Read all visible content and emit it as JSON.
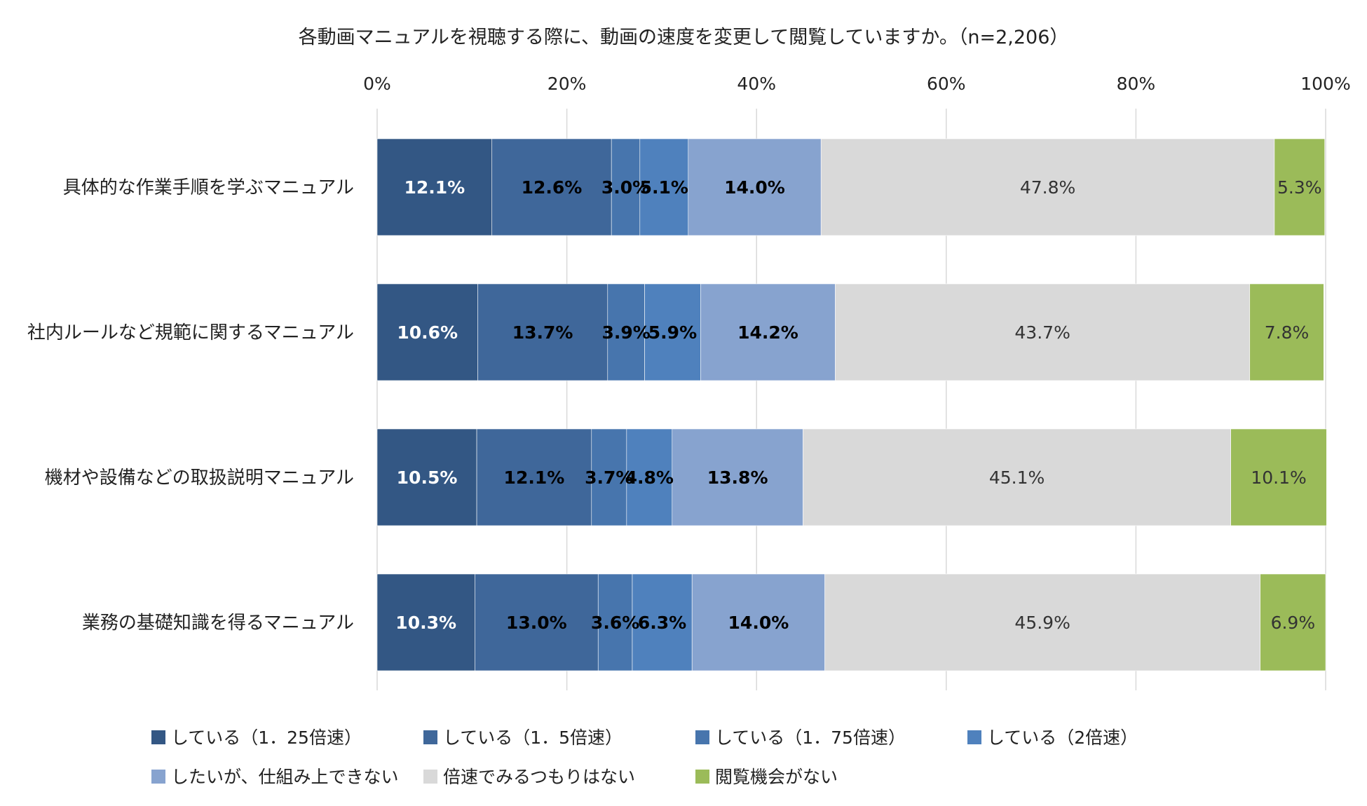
{
  "chart_data": {
    "type": "bar",
    "orientation": "horizontal",
    "stacked": "100%",
    "title": "各動画マニュアルを視聴する際に、動画の速度を変更して閲覧していますか。（n=2,206）",
    "xlim": [
      0,
      100
    ],
    "x_ticks": [
      "0%",
      "20%",
      "40%",
      "60%",
      "80%",
      "100%"
    ],
    "grid": true,
    "legend_position": "bottom",
    "categories": [
      "具体的な作業手順を学ぶマニュアル",
      "社内ルールなど規範に関するマニュアル",
      "機材や設備などの取扱説明マニュアル",
      "業務の基礎知識を得るマニュアル"
    ],
    "series": [
      {
        "name": "している（1．25倍速）",
        "color": "#335784",
        "label_color": "#ffffff",
        "values": [
          12.1,
          10.6,
          10.5,
          10.3
        ],
        "labels": [
          "12.1%",
          "10.6%",
          "10.5%",
          "10.3%"
        ]
      },
      {
        "name": "している（1．5倍速）",
        "color": "#3f679a",
        "label_color": "#000000",
        "values": [
          12.6,
          13.7,
          12.1,
          13.0
        ],
        "labels": [
          "12.6%",
          "13.7%",
          "12.1%",
          "13.0%"
        ]
      },
      {
        "name": "している（1．75倍速）",
        "color": "#4775ad",
        "label_color": "#000000",
        "values": [
          3.0,
          3.9,
          3.7,
          3.6
        ],
        "labels": [
          "3.0%",
          "3.9%",
          "3.7%",
          "3.6%"
        ]
      },
      {
        "name": "している（2倍速）",
        "color": "#4f81bd",
        "label_color": "#000000",
        "values": [
          5.1,
          5.9,
          4.8,
          6.3
        ],
        "labels": [
          "5.1%",
          "5.9%",
          "4.8%",
          "6.3%"
        ]
      },
      {
        "name": "したいが、仕組み上できない",
        "color": "#87a3cf",
        "label_color": "#000000",
        "values": [
          14.0,
          14.2,
          13.8,
          14.0
        ],
        "labels": [
          "14.0%",
          "14.2%",
          "13.8%",
          "14.0%"
        ]
      },
      {
        "name": "倍速でみるつもりはない",
        "color": "#d9d9d9",
        "label_color": "#333333",
        "values": [
          47.8,
          43.7,
          45.1,
          45.9
        ],
        "labels": [
          "47.8%",
          "43.7%",
          "45.1%",
          "45.9%"
        ]
      },
      {
        "name": "閲覧機会がない",
        "color": "#9bbb59",
        "label_color": "#333333",
        "values": [
          5.3,
          7.8,
          10.1,
          6.9
        ],
        "labels": [
          "5.3%",
          "7.8%",
          "10.1%",
          "6.9%"
        ]
      }
    ]
  }
}
